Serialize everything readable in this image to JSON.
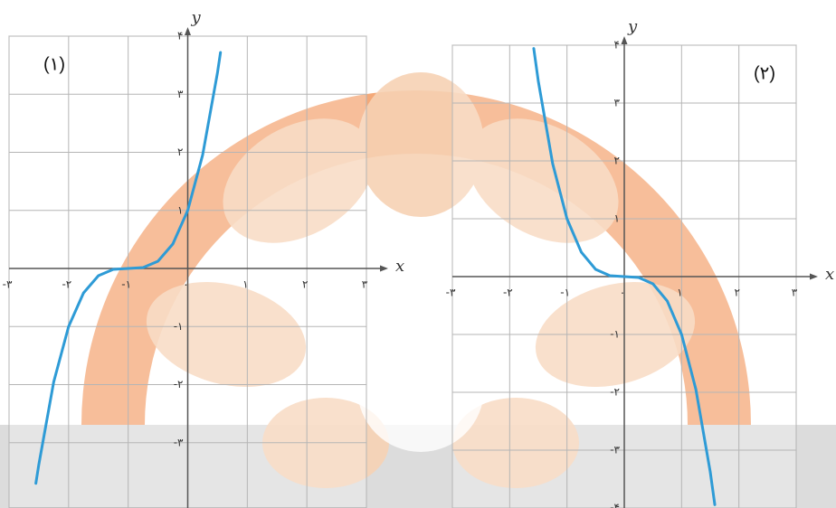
{
  "chart_data": [
    {
      "type": "line",
      "label": "(۱)",
      "x_label": "x",
      "y_label": "y",
      "grid": true,
      "color": "#2e9bd6",
      "xlim": [
        -3,
        3
      ],
      "ylim": [
        -4,
        4
      ],
      "xticks": [
        {
          "value": -3,
          "label": "-۳"
        },
        {
          "value": -2,
          "label": "-۲"
        },
        {
          "value": -1,
          "label": "-۱"
        },
        {
          "value": 0,
          "label": "٠"
        },
        {
          "value": 1,
          "label": "۱"
        },
        {
          "value": 2,
          "label": "۲"
        },
        {
          "value": 3,
          "label": "۳"
        }
      ],
      "yticks": [
        {
          "value": -3,
          "label": "-۳"
        },
        {
          "value": -2,
          "label": "-۲"
        },
        {
          "value": -1,
          "label": "-۱"
        },
        {
          "value": 1,
          "label": "۱"
        },
        {
          "value": 2,
          "label": "۲"
        },
        {
          "value": 3,
          "label": "۳"
        },
        {
          "value": 4,
          "label": "۴"
        }
      ],
      "x": [
        -2.55,
        -2.5,
        -2.25,
        -2,
        -1.75,
        -1.5,
        -1.25,
        -1,
        -0.75,
        -0.5,
        -0.25,
        0,
        0.25,
        0.5,
        0.55
      ],
      "values": [
        -3.7,
        -3.375,
        -1.953,
        -1,
        -0.422,
        -0.125,
        -0.016,
        0,
        0.016,
        0.125,
        0.422,
        1,
        1.953,
        3.375,
        3.72
      ]
    },
    {
      "type": "line",
      "label": "(۲)",
      "x_label": "x",
      "y_label": "y",
      "grid": true,
      "color": "#2e9bd6",
      "xlim": [
        -3,
        3
      ],
      "ylim": [
        -4,
        4
      ],
      "xticks": [
        {
          "value": -3,
          "label": "-۳"
        },
        {
          "value": -2,
          "label": "-۲"
        },
        {
          "value": -1,
          "label": "-۱"
        },
        {
          "value": 0,
          "label": "٠"
        },
        {
          "value": 1,
          "label": "۱"
        },
        {
          "value": 2,
          "label": "۲"
        },
        {
          "value": 3,
          "label": "۳"
        }
      ],
      "yticks": [
        {
          "value": -4,
          "label": "-۴"
        },
        {
          "value": -3,
          "label": "-۳"
        },
        {
          "value": -2,
          "label": "-۲"
        },
        {
          "value": -1,
          "label": "-۱"
        },
        {
          "value": 1,
          "label": "۱"
        },
        {
          "value": 2,
          "label": "۲"
        },
        {
          "value": 3,
          "label": "۳"
        },
        {
          "value": 4,
          "label": "۴"
        }
      ],
      "x": [
        -1.58,
        -1.5,
        -1.25,
        -1,
        -0.75,
        -0.5,
        -0.25,
        0,
        0.25,
        0.5,
        0.75,
        1,
        1.25,
        1.5,
        1.58
      ],
      "values": [
        3.944,
        3.375,
        1.953,
        1,
        0.422,
        0.125,
        0.016,
        0,
        -0.016,
        -0.125,
        -0.422,
        -1,
        -1.953,
        -3.375,
        -3.944
      ]
    }
  ]
}
